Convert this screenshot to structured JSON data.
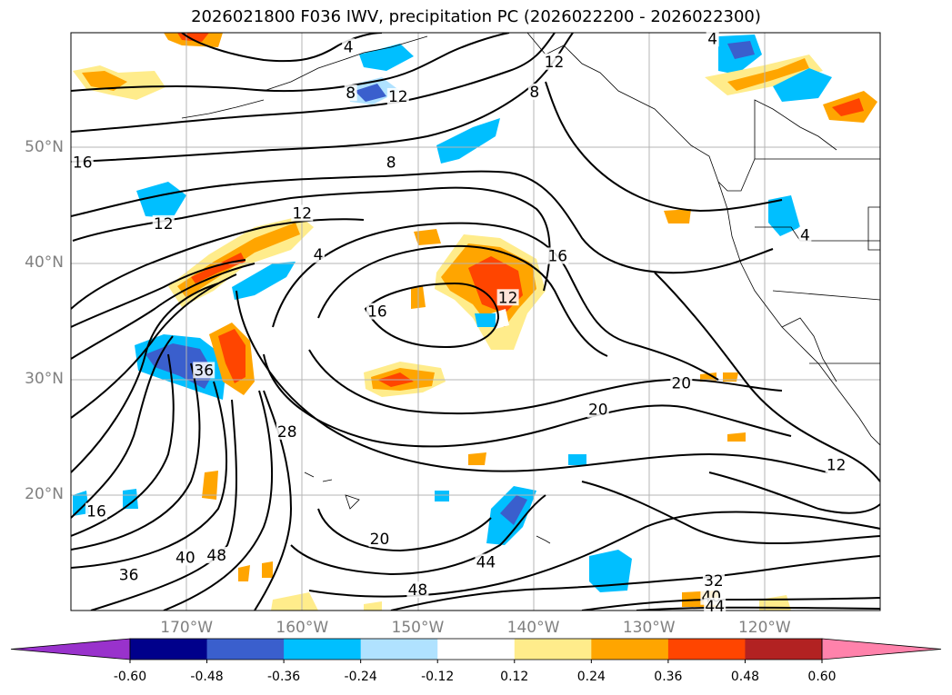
{
  "title": "2026021800 F036 IWV, precipitation PC (2026022200 - 2026022300)",
  "lat_labels": [
    {
      "text": "50°N",
      "lat": 50
    },
    {
      "text": "40°N",
      "lat": 40
    },
    {
      "text": "30°N",
      "lat": 30
    },
    {
      "text": "20°N",
      "lat": 20
    }
  ],
  "lon_labels": [
    {
      "text": "170°W",
      "lon": -170
    },
    {
      "text": "160°W",
      "lon": -160
    },
    {
      "text": "150°W",
      "lon": -150
    },
    {
      "text": "140°W",
      "lon": -140
    },
    {
      "text": "130°W",
      "lon": -130
    },
    {
      "text": "120°W",
      "lon": -120
    }
  ],
  "colorbar": {
    "ticks": [
      "-0.60",
      "-0.48",
      "-0.36",
      "-0.24",
      "-0.12",
      "0.12",
      "0.24",
      "0.36",
      "0.48",
      "0.60"
    ],
    "colors": [
      "#9932cc",
      "#00008b",
      "#3a5fcd",
      "#00bfff",
      "#b0e2ff",
      "#ffffff",
      "#ffec8b",
      "#ffa500",
      "#ff4500",
      "#b22222",
      "#ff82ab"
    ]
  },
  "contour_labels": [
    {
      "text": "4",
      "lon": -156,
      "lat": 58.8
    },
    {
      "text": "8",
      "lon": -155.8,
      "lat": 54.8
    },
    {
      "text": "12",
      "lon": -151.7,
      "lat": 54.5
    },
    {
      "text": "8",
      "lon": -152.3,
      "lat": 48.8
    },
    {
      "text": "16",
      "lon": -179,
      "lat": 48.8
    },
    {
      "text": "12",
      "lon": -172,
      "lat": 43.5
    },
    {
      "text": "12",
      "lon": -160,
      "lat": 44.4
    },
    {
      "text": "4",
      "lon": -158.6,
      "lat": 40.8
    },
    {
      "text": "16",
      "lon": -153.5,
      "lat": 35.9
    },
    {
      "text": "12",
      "lon": -142.2,
      "lat": 37.1
    },
    {
      "text": "16",
      "lon": -137.9,
      "lat": 40.7
    },
    {
      "text": "36",
      "lon": -168.5,
      "lat": 30.8
    },
    {
      "text": "28",
      "lon": -161.3,
      "lat": 25.5
    },
    {
      "text": "20",
      "lon": -127.2,
      "lat": 29.7
    },
    {
      "text": "20",
      "lon": -134.4,
      "lat": 27.4
    },
    {
      "text": "16",
      "lon": -177.8,
      "lat": 18.6
    },
    {
      "text": "20",
      "lon": -153.3,
      "lat": 16.2
    },
    {
      "text": "40",
      "lon": -170.1,
      "lat": 14.6
    },
    {
      "text": "48",
      "lon": -167.4,
      "lat": 14.8
    },
    {
      "text": "44",
      "lon": -144.1,
      "lat": 14.2
    },
    {
      "text": "36",
      "lon": -175,
      "lat": 13.1
    },
    {
      "text": "48",
      "lon": -150,
      "lat": 11.8
    },
    {
      "text": "32",
      "lon": -124.4,
      "lat": 12.6
    },
    {
      "text": "40",
      "lon": -124.6,
      "lat": 11.2
    },
    {
      "text": "44",
      "lon": -124.3,
      "lat": 10.4
    },
    {
      "text": "12",
      "lon": -113.8,
      "lat": 22.6
    },
    {
      "text": "12",
      "lon": -138.2,
      "lat": 57.5
    },
    {
      "text": "8",
      "lon": -139.9,
      "lat": 54.9
    },
    {
      "text": "4",
      "lon": -124.5,
      "lat": 59.5
    },
    {
      "text": "4",
      "lon": -116.5,
      "lat": 42.5
    }
  ]
}
